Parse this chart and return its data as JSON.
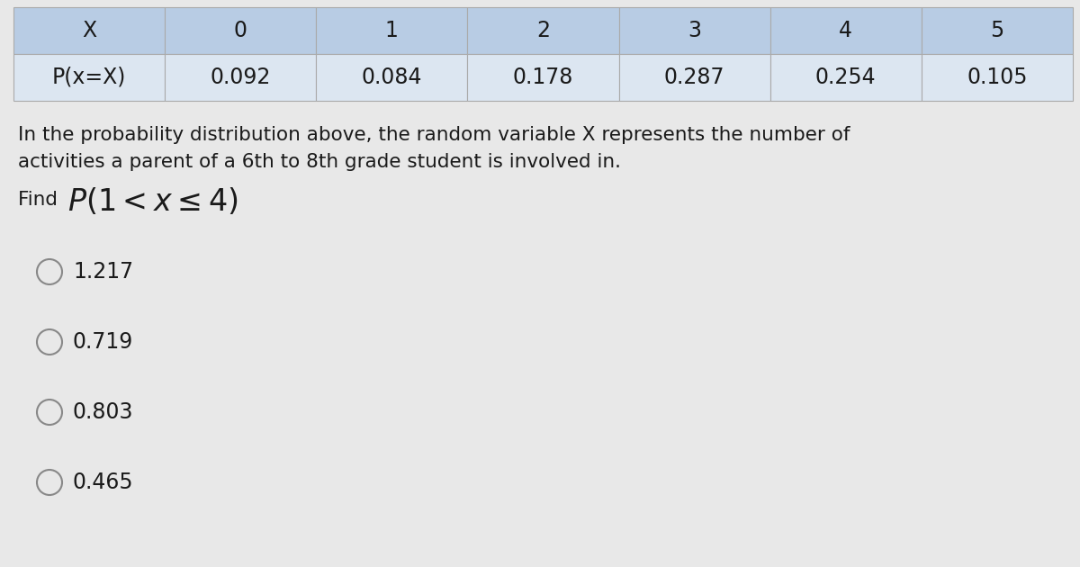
{
  "table_headers": [
    "X",
    "0",
    "1",
    "2",
    "3",
    "4",
    "5"
  ],
  "table_row_label": "P(x=X)",
  "table_values": [
    "0.092",
    "0.084",
    "0.178",
    "0.287",
    "0.254",
    "0.105"
  ],
  "description_line1": "In the probability distribution above, the random variable X represents the number of",
  "description_line2": "activities a parent of a 6th to 8th grade student is involved in.",
  "find_label": "Find ",
  "choices": [
    "1.217",
    "0.719",
    "0.803",
    "0.465"
  ],
  "table_header_bg": "#b8cce4",
  "table_row_bg": "#dce6f1",
  "table_border_color": "#aaaaaa",
  "text_color": "#1a1a1a",
  "circle_color": "#888888",
  "body_bg": "#e8e8e8",
  "fig_w": 12.0,
  "fig_h": 6.3,
  "dpi": 100
}
